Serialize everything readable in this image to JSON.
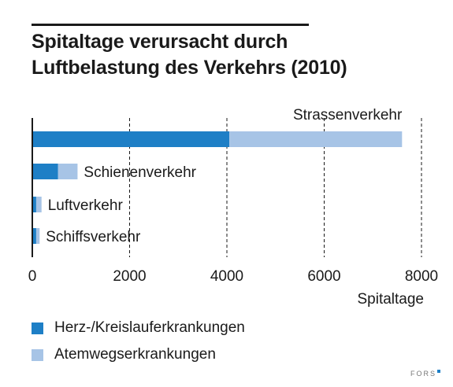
{
  "title": {
    "line1": "Spitaltage verursacht durch",
    "line2": "Luftbelastung des Verkehrs (2010)"
  },
  "colors": {
    "herz": "#1e7fc6",
    "atemweg": "#a7c4e6",
    "text": "#1a1a1a"
  },
  "chart_data": {
    "type": "bar",
    "orientation": "horizontal",
    "stacked": true,
    "categories": [
      "Strassenverkehr",
      "Schienenverkehr",
      "Luftverkehr",
      "Schiffsverkehr"
    ],
    "series": [
      {
        "name": "Herz-/Kreislauferkrankungen",
        "values": [
          4050,
          530,
          80,
          80
        ],
        "color": "#1e7fc6"
      },
      {
        "name": "Atemwegserkrankungen",
        "values": [
          3550,
          400,
          110,
          70
        ],
        "color": "#a7c4e6"
      }
    ],
    "xlabel": "Spitaltage",
    "xlim": [
      0,
      8000
    ],
    "xticks": [
      0,
      2000,
      4000,
      6000,
      8000
    ],
    "xtick_labels": [
      "0",
      "2000",
      "4000",
      "6000",
      "8000"
    ],
    "grid": "vertical dashed",
    "legend_position": "bottom-left"
  },
  "brand": "FORS"
}
